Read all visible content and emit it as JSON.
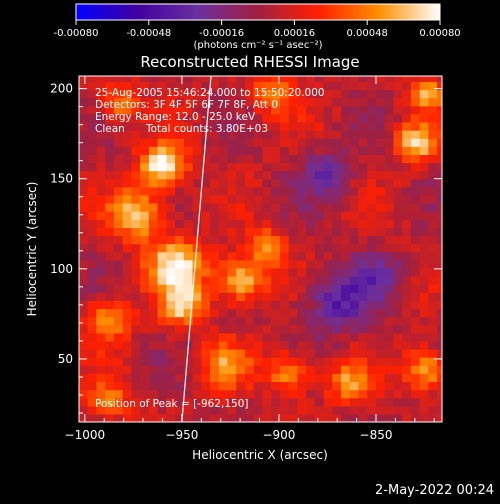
{
  "colorbar": {
    "ticks": [
      "-0.00080",
      "-0.00048",
      "-0.00016",
      "0.00016",
      "0.00048",
      "0.00080"
    ],
    "range": [
      -0.0008,
      0.0008
    ],
    "unit_label": "(photons cm⁻² s⁻¹ asec⁻²)",
    "colors": [
      "#0000ff",
      "#4000a0",
      "#6a2f9f",
      "#a02040",
      "#ff2000",
      "#ff9000",
      "#ffffff"
    ]
  },
  "image_title": "Reconstructed RHESSI Image",
  "info": {
    "time_range": "25-Aug-2005 15:46:24.000 to 15:50:20.000",
    "detectors": "Detectors: 3F 4F 5F 6F 7F 8F, Att 0",
    "energy": "Energy Range: 12.0 - 25.0 keV",
    "algorithm": "Clean",
    "total_counts": "Total counts: 3.80E+03",
    "peak": "Position of Peak = [-962,150]"
  },
  "footer_date": "2-May-2022 00:24",
  "chart_data": {
    "type": "heatmap",
    "title": "Reconstructed RHESSI Image",
    "xlabel": "Heliocentric X (arcsec)",
    "ylabel": "Heliocentric Y (arcsec)",
    "x_ticks": [
      -1000,
      -950,
      -900,
      -850
    ],
    "y_ticks": [
      50,
      100,
      150,
      200
    ],
    "xlim": [
      -1003,
      -816
    ],
    "ylim": [
      15,
      207
    ],
    "peak": [
      -962,
      150
    ],
    "limb_line": [
      [
        -950,
        15
      ],
      [
        -935,
        207
      ]
    ],
    "hotspots": [
      {
        "x": -962,
        "y": 155,
        "amp": 1.0,
        "s": 8
      },
      {
        "x": -975,
        "y": 128,
        "amp": 0.75,
        "s": 10
      },
      {
        "x": -955,
        "y": 100,
        "amp": 0.85,
        "s": 10
      },
      {
        "x": -952,
        "y": 78,
        "amp": 0.75,
        "s": 8
      },
      {
        "x": -922,
        "y": 92,
        "amp": 0.8,
        "s": 9
      },
      {
        "x": -908,
        "y": 110,
        "amp": 0.55,
        "s": 7
      },
      {
        "x": -990,
        "y": 70,
        "amp": 0.6,
        "s": 8
      },
      {
        "x": -930,
        "y": 45,
        "amp": 0.5,
        "s": 9
      },
      {
        "x": -897,
        "y": 40,
        "amp": 0.6,
        "s": 8
      },
      {
        "x": -867,
        "y": 35,
        "amp": 0.55,
        "s": 8
      },
      {
        "x": -826,
        "y": 42,
        "amp": 0.7,
        "s": 8
      },
      {
        "x": -832,
        "y": 168,
        "amp": 0.8,
        "s": 7
      },
      {
        "x": -826,
        "y": 195,
        "amp": 0.6,
        "s": 7
      },
      {
        "x": -985,
        "y": 190,
        "amp": 0.55,
        "s": 7
      },
      {
        "x": -905,
        "y": 195,
        "amp": 0.5,
        "s": 8
      },
      {
        "x": -990,
        "y": 25,
        "amp": 0.45,
        "s": 8
      }
    ],
    "coldspots": [
      {
        "x": -872,
        "y": 80,
        "amp": 0.55,
        "s": 12
      },
      {
        "x": -878,
        "y": 150,
        "amp": 0.4,
        "s": 10
      },
      {
        "x": -852,
        "y": 95,
        "amp": 0.3,
        "s": 10
      }
    ]
  }
}
